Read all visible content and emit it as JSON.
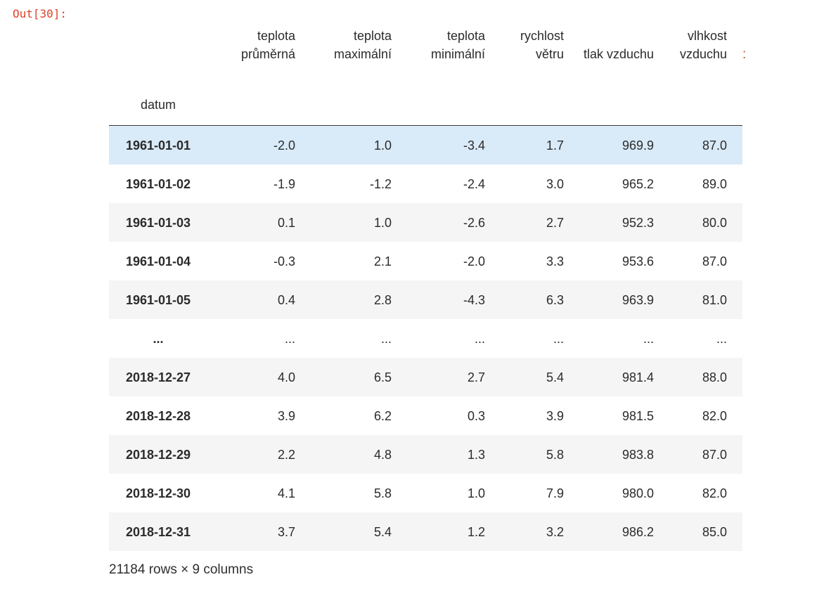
{
  "output_prompt": "Out[30]:",
  "table": {
    "index_name": "datum",
    "columns": [
      "teplota průměrná",
      "teplota maximální",
      "teplota minimální",
      "rychlost větru",
      "tlak vzduchu",
      "vlhkost vzduchu"
    ],
    "clipped_column_hint": ":",
    "rows": [
      {
        "index": "1961-01-01",
        "values": [
          "-2.0",
          "1.0",
          "-3.4",
          "1.7",
          "969.9",
          "87.0"
        ],
        "highlighted": true
      },
      {
        "index": "1961-01-02",
        "values": [
          "-1.9",
          "-1.2",
          "-2.4",
          "3.0",
          "965.2",
          "89.0"
        ]
      },
      {
        "index": "1961-01-03",
        "values": [
          "0.1",
          "1.0",
          "-2.6",
          "2.7",
          "952.3",
          "80.0"
        ]
      },
      {
        "index": "1961-01-04",
        "values": [
          "-0.3",
          "2.1",
          "-2.0",
          "3.3",
          "953.6",
          "87.0"
        ]
      },
      {
        "index": "1961-01-05",
        "values": [
          "0.4",
          "2.8",
          "-4.3",
          "6.3",
          "963.9",
          "81.0"
        ]
      },
      {
        "index": "...",
        "values": [
          "...",
          "...",
          "...",
          "...",
          "...",
          "..."
        ],
        "ellipsis": true
      },
      {
        "index": "2018-12-27",
        "values": [
          "4.0",
          "6.5",
          "2.7",
          "5.4",
          "981.4",
          "88.0"
        ]
      },
      {
        "index": "2018-12-28",
        "values": [
          "3.9",
          "6.2",
          "0.3",
          "3.9",
          "981.5",
          "82.0"
        ]
      },
      {
        "index": "2018-12-29",
        "values": [
          "2.2",
          "4.8",
          "1.3",
          "5.8",
          "983.8",
          "87.0"
        ]
      },
      {
        "index": "2018-12-30",
        "values": [
          "4.1",
          "5.8",
          "1.0",
          "7.9",
          "980.0",
          "82.0"
        ]
      },
      {
        "index": "2018-12-31",
        "values": [
          "3.7",
          "5.4",
          "1.2",
          "3.2",
          "986.2",
          "85.0"
        ]
      }
    ],
    "footer": "21184 rows × 9 columns"
  },
  "colors": {
    "prompt_red": "#dd4229",
    "row_highlight_blue": "#d9eaf8",
    "row_stripe_gray": "#f5f5f5",
    "text": "#2b2b2b",
    "header_border": "#3a3a3a"
  }
}
